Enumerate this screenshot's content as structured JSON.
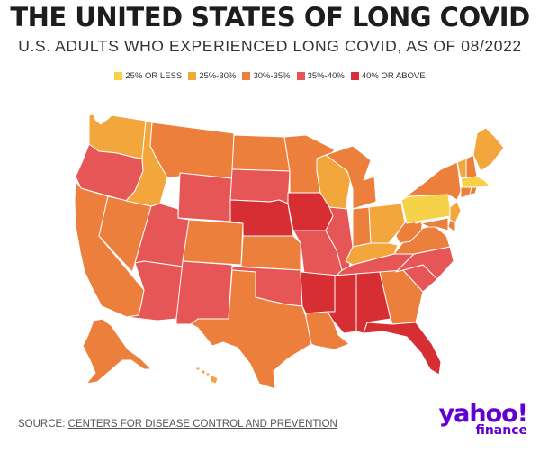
{
  "header": {
    "title": "THE UNITED STATES OF LONG COVID",
    "subtitle": "U.S. ADULTS WHO EXPERIENCED LONG COVID, AS OF 08/2022"
  },
  "legend": [
    {
      "label": "25% OR LESS",
      "color": "#f6d24a"
    },
    {
      "label": "25%-30%",
      "color": "#f3a63c"
    },
    {
      "label": "30%-35%",
      "color": "#ec7f3b"
    },
    {
      "label": "35%-40%",
      "color": "#e65656"
    },
    {
      "label": "40% OR ABOVE",
      "color": "#d62e32"
    }
  ],
  "map_data": {
    "WA": "25%-30%",
    "OR": "35%-40%",
    "CA": "30%-35%",
    "NV": "30%-35%",
    "ID": "25%-30%",
    "MT": "30%-35%",
    "WY": "35%-40%",
    "UT": "35%-40%",
    "AZ": "35%-40%",
    "CO": "30%-35%",
    "NM": "35%-40%",
    "ND": "30%-35%",
    "SD": "35%-40%",
    "NE": "40% OR ABOVE",
    "KS": "30%-35%",
    "OK": "35%-40%",
    "TX": "30%-35%",
    "MN": "30%-35%",
    "IA": "40% OR ABOVE",
    "MO": "35%-40%",
    "AR": "40% OR ABOVE",
    "LA": "30%-35%",
    "WI": "25%-30%",
    "IL": "35%-40%",
    "MI": "30%-35%",
    "IN": "30%-35%",
    "OH": "25%-30%",
    "KY": "25%-30%",
    "TN": "35%-40%",
    "MS": "40% OR ABOVE",
    "AL": "40% OR ABOVE",
    "GA": "30%-35%",
    "FL": "40% OR ABOVE",
    "SC": "35%-40%",
    "NC": "35%-40%",
    "VA": "30%-35%",
    "WV": "30%-35%",
    "PA": "25% OR LESS",
    "NY": "30%-35%",
    "VT": "25%-30%",
    "NH": "30%-35%",
    "ME": "25%-30%",
    "MA": "25% OR LESS",
    "NJ": "25%-30%",
    "CT": "30%-35%",
    "DE": "30%-35%",
    "MD": "30%-35%",
    "RI": "30%-35%",
    "AK": "30%-35%",
    "HI": "25%-30%"
  },
  "footer": {
    "source_prefix": "SOURCE: ",
    "source_link": "CENTERS FOR DISEASE CONTROL AND PREVENTION",
    "logo_main": "yahoo!",
    "logo_sub": "finance"
  }
}
